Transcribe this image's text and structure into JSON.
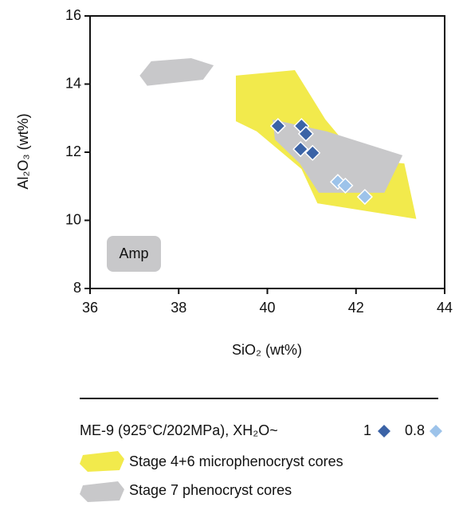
{
  "chart_data": {
    "type": "scatter",
    "xlabel": "SiO₂ (wt%)",
    "ylabel": "Al₂O₃ (wt%)",
    "xlim": [
      36,
      44
    ],
    "xticks": [
      36,
      38,
      40,
      42,
      44
    ],
    "ylim": [
      8,
      16
    ],
    "yticks": [
      8,
      10,
      12,
      14,
      16
    ],
    "annotation": "Amp",
    "legend_title": "ME-9 (925°C/202MPa), XH₂O~",
    "regions": [
      {
        "name": "Stage 4+6 microphenocryst cores",
        "color": "#f2ea4c",
        "polygons": [
          {
            "x": [
              39.29,
              40.62,
              41.31,
              42.06,
              43.09,
              43.36,
              41.13,
              40.77,
              39.76,
              39.29
            ],
            "y": [
              14.25,
              14.41,
              12.96,
              11.79,
              11.67,
              10.04,
              10.5,
              11.51,
              12.61,
              12.91
            ]
          }
        ]
      },
      {
        "name": "Stage 7 phenocryst cores",
        "color": "#c8c8ca",
        "polygons": [
          {
            "x": [
              40.12,
              41.34,
              43.05,
              42.64,
              41.16,
              40.73,
              40.17
            ],
            "y": [
              12.96,
              12.61,
              11.91,
              10.81,
              10.81,
              11.67,
              12.37
            ]
          },
          {
            "x": [
              37.12,
              37.38,
              38.28,
              38.79,
              38.55,
              37.29
            ],
            "y": [
              14.25,
              14.67,
              14.76,
              14.55,
              14.13,
              13.95
            ]
          }
        ]
      }
    ],
    "series": [
      {
        "name": "1",
        "color": "#3b63a6",
        "x": [
          40.24,
          40.77,
          40.87,
          40.75,
          41.02
        ],
        "values": [
          12.77,
          12.77,
          12.54,
          12.09,
          11.98
        ]
      },
      {
        "name": "0.8",
        "color": "#9dc3ea",
        "x": [
          41.59,
          41.76,
          42.2
        ],
        "values": [
          11.13,
          11.02,
          10.69
        ]
      }
    ]
  }
}
